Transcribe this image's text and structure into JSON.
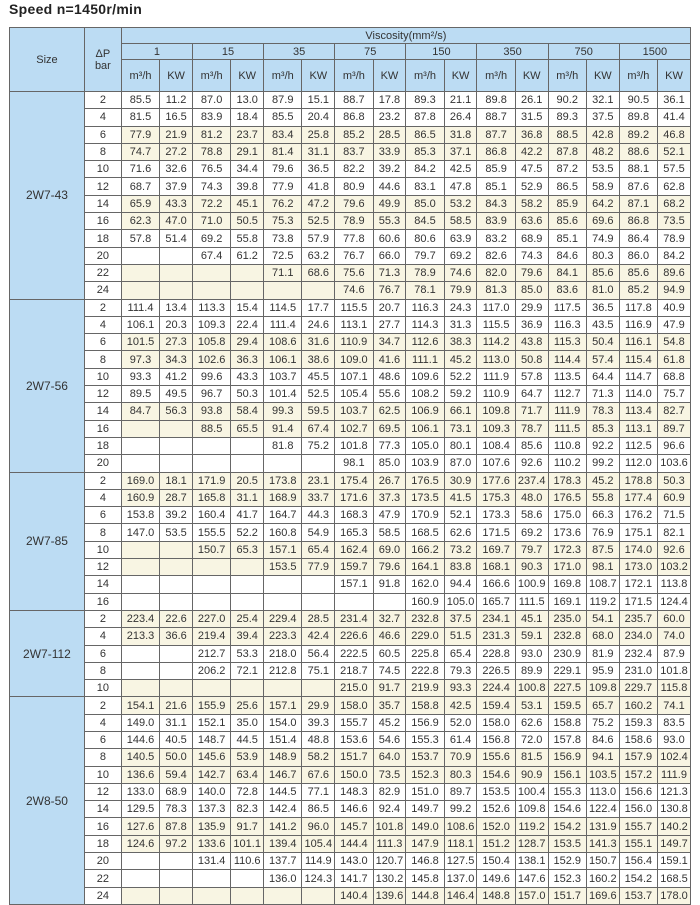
{
  "title": "Speed  n=1450r/min",
  "header": {
    "size": "Size",
    "dp": "ΔP",
    "dp_unit": "bar",
    "viscosity": "Viscosity(mm²/s)",
    "viscosities": [
      "1",
      "15",
      "35",
      "75",
      "150",
      "350",
      "750",
      "1500"
    ],
    "flow": "m³/h",
    "power": "KW"
  },
  "colors": {
    "header_bg": "#bcdcf3",
    "highlight_row": "#f8f5e3"
  },
  "groups": [
    {
      "size": "2W7-43",
      "rows": [
        {
          "dp": "2",
          "v": [
            "85.5",
            "11.2",
            "87.0",
            "13.0",
            "87.9",
            "15.1",
            "88.7",
            "17.8",
            "89.3",
            "21.1",
            "89.8",
            "26.1",
            "90.2",
            "32.1",
            "90.5",
            "36.1"
          ]
        },
        {
          "dp": "4",
          "v": [
            "81.5",
            "16.5",
            "83.9",
            "18.4",
            "85.5",
            "20.4",
            "86.8",
            "23.2",
            "87.8",
            "26.4",
            "88.7",
            "31.5",
            "89.3",
            "37.5",
            "89.8",
            "41.4"
          ]
        },
        {
          "dp": "6",
          "hl": true,
          "v": [
            "77.9",
            "21.9",
            "81.2",
            "23.7",
            "83.4",
            "25.8",
            "85.2",
            "28.5",
            "86.5",
            "31.8",
            "87.7",
            "36.8",
            "88.5",
            "42.8",
            "89.2",
            "46.8"
          ]
        },
        {
          "dp": "8",
          "hl": true,
          "v": [
            "74.7",
            "27.2",
            "78.8",
            "29.1",
            "81.4",
            "31.1",
            "83.7",
            "33.9",
            "85.3",
            "37.1",
            "86.8",
            "42.2",
            "87.8",
            "48.2",
            "88.6",
            "52.1"
          ]
        },
        {
          "dp": "10",
          "v": [
            "71.6",
            "32.6",
            "76.5",
            "34.4",
            "79.6",
            "36.5",
            "82.2",
            "39.2",
            "84.2",
            "42.5",
            "85.9",
            "47.5",
            "87.2",
            "53.5",
            "88.1",
            "57.5"
          ]
        },
        {
          "dp": "12",
          "v": [
            "68.7",
            "37.9",
            "74.3",
            "39.8",
            "77.9",
            "41.8",
            "80.9",
            "44.6",
            "83.1",
            "47.8",
            "85.1",
            "52.9",
            "86.5",
            "58.9",
            "87.6",
            "62.8"
          ]
        },
        {
          "dp": "14",
          "hl": true,
          "v": [
            "65.9",
            "43.3",
            "72.2",
            "45.1",
            "76.2",
            "47.2",
            "79.6",
            "49.9",
            "85.0",
            "53.2",
            "84.3",
            "58.2",
            "85.9",
            "64.2",
            "87.1",
            "68.2"
          ]
        },
        {
          "dp": "16",
          "hl": true,
          "v": [
            "62.3",
            "47.0",
            "71.0",
            "50.5",
            "75.3",
            "52.5",
            "78.9",
            "55.3",
            "84.5",
            "58.5",
            "83.9",
            "63.6",
            "85.6",
            "69.6",
            "86.8",
            "73.5"
          ]
        },
        {
          "dp": "18",
          "v": [
            "57.8",
            "51.4",
            "69.2",
            "55.8",
            "73.8",
            "57.9",
            "77.8",
            "60.6",
            "80.6",
            "63.9",
            "83.2",
            "68.9",
            "85.1",
            "74.9",
            "86.4",
            "78.9"
          ]
        },
        {
          "dp": "20",
          "v": [
            "",
            "",
            "67.4",
            "61.2",
            "72.5",
            "63.2",
            "76.7",
            "66.0",
            "79.7",
            "69.2",
            "82.6",
            "74.3",
            "84.6",
            "80.3",
            "86.0",
            "84.2"
          ]
        },
        {
          "dp": "22",
          "hl": true,
          "v": [
            "",
            "",
            "",
            "",
            "71.1",
            "68.6",
            "75.6",
            "71.3",
            "78.9",
            "74.6",
            "82.0",
            "79.6",
            "84.1",
            "85.6",
            "85.6",
            "89.6"
          ]
        },
        {
          "dp": "24",
          "hl": true,
          "v": [
            "",
            "",
            "",
            "",
            "",
            "",
            "74.6",
            "76.7",
            "78.1",
            "79.9",
            "81.3",
            "85.0",
            "83.6",
            "81.0",
            "85.2",
            "94.9"
          ]
        }
      ]
    },
    {
      "size": "2W7-56",
      "rows": [
        {
          "dp": "2",
          "v": [
            "111.4",
            "13.4",
            "113.3",
            "15.4",
            "114.5",
            "17.7",
            "115.5",
            "20.7",
            "116.3",
            "24.3",
            "117.0",
            "29.9",
            "117.5",
            "36.5",
            "117.8",
            "40.9"
          ]
        },
        {
          "dp": "4",
          "v": [
            "106.1",
            "20.3",
            "109.3",
            "22.4",
            "111.4",
            "24.6",
            "113.1",
            "27.7",
            "114.3",
            "31.3",
            "115.5",
            "36.9",
            "116.3",
            "43.5",
            "116.9",
            "47.9"
          ]
        },
        {
          "dp": "6",
          "hl": true,
          "v": [
            "101.5",
            "27.3",
            "105.8",
            "29.4",
            "108.6",
            "31.6",
            "110.9",
            "34.7",
            "112.6",
            "38.3",
            "114.2",
            "43.8",
            "115.3",
            "50.4",
            "116.1",
            "54.8"
          ]
        },
        {
          "dp": "8",
          "hl": true,
          "v": [
            "97.3",
            "34.3",
            "102.6",
            "36.3",
            "106.1",
            "38.6",
            "109.0",
            "41.6",
            "111.1",
            "45.2",
            "113.0",
            "50.8",
            "114.4",
            "57.4",
            "115.4",
            "61.8"
          ]
        },
        {
          "dp": "10",
          "v": [
            "93.3",
            "41.2",
            "99.6",
            "43.3",
            "103.7",
            "45.5",
            "107.1",
            "48.6",
            "109.6",
            "52.2",
            "111.9",
            "57.8",
            "113.5",
            "64.4",
            "114.7",
            "68.8"
          ]
        },
        {
          "dp": "12",
          "v": [
            "89.5",
            "49.5",
            "96.7",
            "50.3",
            "101.4",
            "52.5",
            "105.4",
            "55.6",
            "108.2",
            "59.2",
            "110.9",
            "64.7",
            "112.7",
            "71.3",
            "114.0",
            "75.7"
          ]
        },
        {
          "dp": "14",
          "hl": true,
          "v": [
            "84.7",
            "56.3",
            "93.8",
            "58.4",
            "99.3",
            "59.5",
            "103.7",
            "62.5",
            "106.9",
            "66.1",
            "109.8",
            "71.7",
            "111.9",
            "78.3",
            "113.4",
            "82.7"
          ]
        },
        {
          "dp": "16",
          "hl": true,
          "v": [
            "",
            "",
            "88.5",
            "65.5",
            "91.4",
            "67.4",
            "102.7",
            "69.5",
            "106.1",
            "73.1",
            "109.3",
            "78.7",
            "111.5",
            "85.3",
            "113.1",
            "89.7"
          ]
        },
        {
          "dp": "18",
          "v": [
            "",
            "",
            "",
            "",
            "81.8",
            "75.2",
            "101.8",
            "77.3",
            "105.0",
            "80.1",
            "108.4",
            "85.6",
            "110.8",
            "92.2",
            "112.5",
            "96.6"
          ]
        },
        {
          "dp": "20",
          "v": [
            "",
            "",
            "",
            "",
            "",
            "",
            "98.1",
            "85.0",
            "103.9",
            "87.0",
            "107.6",
            "92.6",
            "110.2",
            "99.2",
            "112.0",
            "103.6"
          ]
        }
      ]
    },
    {
      "size": "2W7-85",
      "rows": [
        {
          "dp": "2",
          "hl": true,
          "v": [
            "169.0",
            "18.1",
            "171.9",
            "20.5",
            "173.8",
            "23.1",
            "175.4",
            "26.7",
            "176.5",
            "30.9",
            "177.6",
            "237.4",
            "178.3",
            "45.2",
            "178.8",
            "50.3"
          ]
        },
        {
          "dp": "4",
          "hl": true,
          "v": [
            "160.9",
            "28.7",
            "165.8",
            "31.1",
            "168.9",
            "33.7",
            "171.6",
            "37.3",
            "173.5",
            "41.5",
            "175.3",
            "48.0",
            "176.5",
            "55.8",
            "177.4",
            "60.9"
          ]
        },
        {
          "dp": "6",
          "v": [
            "153.8",
            "39.2",
            "160.4",
            "41.7",
            "164.7",
            "44.3",
            "168.3",
            "47.9",
            "170.9",
            "52.1",
            "173.3",
            "58.6",
            "175.0",
            "66.3",
            "176.2",
            "71.5"
          ]
        },
        {
          "dp": "8",
          "v": [
            "147.0",
            "53.5",
            "155.5",
            "52.2",
            "160.8",
            "54.9",
            "165.3",
            "58.5",
            "168.5",
            "62.6",
            "171.5",
            "69.2",
            "173.6",
            "76.9",
            "175.1",
            "82.1"
          ]
        },
        {
          "dp": "10",
          "hl": true,
          "v": [
            "",
            "",
            "150.7",
            "65.3",
            "157.1",
            "65.4",
            "162.4",
            "69.0",
            "166.2",
            "73.2",
            "169.7",
            "79.7",
            "172.3",
            "87.5",
            "174.0",
            "92.6"
          ]
        },
        {
          "dp": "12",
          "hl": true,
          "v": [
            "",
            "",
            "",
            "",
            "153.5",
            "77.9",
            "159.7",
            "79.6",
            "164.1",
            "83.8",
            "168.1",
            "90.3",
            "171.0",
            "98.1",
            "173.0",
            "103.2"
          ]
        },
        {
          "dp": "14",
          "v": [
            "",
            "",
            "",
            "",
            "",
            "",
            "157.1",
            "91.8",
            "162.0",
            "94.4",
            "166.6",
            "100.9",
            "169.8",
            "108.7",
            "172.1",
            "113.8"
          ]
        },
        {
          "dp": "16",
          "v": [
            "",
            "",
            "",
            "",
            "",
            "",
            "",
            "",
            "160.9",
            "105.0",
            "165.7",
            "111.5",
            "169.1",
            "119.2",
            "171.5",
            "124.4"
          ]
        }
      ]
    },
    {
      "size": "2W7-112",
      "rows": [
        {
          "dp": "2",
          "hl": true,
          "v": [
            "223.4",
            "22.6",
            "227.0",
            "25.4",
            "229.4",
            "28.5",
            "231.4",
            "32.7",
            "232.8",
            "37.5",
            "234.1",
            "45.1",
            "235.0",
            "54.1",
            "235.7",
            "60.0"
          ]
        },
        {
          "dp": "4",
          "hl": true,
          "v": [
            "213.3",
            "36.6",
            "219.4",
            "39.4",
            "223.3",
            "42.4",
            "226.6",
            "46.6",
            "229.0",
            "51.5",
            "231.3",
            "59.1",
            "232.8",
            "68.0",
            "234.0",
            "74.0"
          ]
        },
        {
          "dp": "6",
          "v": [
            "",
            "",
            "212.7",
            "53.3",
            "218.0",
            "56.4",
            "222.5",
            "60.5",
            "225.8",
            "65.4",
            "228.8",
            "93.0",
            "230.9",
            "81.9",
            "232.4",
            "87.9"
          ]
        },
        {
          "dp": "8",
          "v": [
            "",
            "",
            "206.2",
            "72.1",
            "212.8",
            "75.1",
            "218.7",
            "74.5",
            "222.8",
            "79.3",
            "226.5",
            "89.9",
            "229.1",
            "95.9",
            "231.0",
            "101.8"
          ]
        },
        {
          "dp": "10",
          "hl": true,
          "v": [
            "",
            "",
            "",
            "",
            "",
            "",
            "215.0",
            "91.7",
            "219.9",
            "93.3",
            "224.4",
            "100.8",
            "227.5",
            "109.8",
            "229.7",
            "115.8"
          ]
        }
      ]
    },
    {
      "size": "2W8-50",
      "rows": [
        {
          "dp": "2",
          "hl": true,
          "v": [
            "154.1",
            "21.6",
            "155.9",
            "25.6",
            "157.1",
            "29.9",
            "158.0",
            "35.7",
            "158.8",
            "42.5",
            "159.4",
            "53.1",
            "159.5",
            "65.7",
            "160.2",
            "74.1"
          ]
        },
        {
          "dp": "4",
          "v": [
            "149.0",
            "31.1",
            "152.1",
            "35.0",
            "154.0",
            "39.3",
            "155.7",
            "45.2",
            "156.9",
            "52.0",
            "158.0",
            "62.6",
            "158.8",
            "75.2",
            "159.3",
            "83.5"
          ]
        },
        {
          "dp": "6",
          "v": [
            "144.6",
            "40.5",
            "148.7",
            "44.5",
            "151.4",
            "48.8",
            "153.6",
            "54.6",
            "155.3",
            "61.4",
            "156.8",
            "72.0",
            "157.8",
            "84.6",
            "158.6",
            "93.0"
          ]
        },
        {
          "dp": "8",
          "hl": true,
          "v": [
            "140.5",
            "50.0",
            "145.6",
            "53.9",
            "148.9",
            "58.2",
            "151.7",
            "64.0",
            "153.7",
            "70.9",
            "155.6",
            "81.5",
            "156.9",
            "94.1",
            "157.9",
            "102.4"
          ]
        },
        {
          "dp": "10",
          "hl": true,
          "v": [
            "136.6",
            "59.4",
            "142.7",
            "63.4",
            "146.7",
            "67.6",
            "150.0",
            "73.5",
            "152.3",
            "80.3",
            "154.6",
            "90.9",
            "156.1",
            "103.5",
            "157.2",
            "111.9"
          ]
        },
        {
          "dp": "12",
          "v": [
            "133.0",
            "68.9",
            "140.0",
            "72.8",
            "144.5",
            "77.1",
            "148.3",
            "82.9",
            "151.0",
            "89.7",
            "153.5",
            "100.4",
            "155.3",
            "113.0",
            "156.6",
            "121.3"
          ]
        },
        {
          "dp": "14",
          "v": [
            "129.5",
            "78.3",
            "137.3",
            "82.3",
            "142.4",
            "86.5",
            "146.6",
            "92.4",
            "149.7",
            "99.2",
            "152.6",
            "109.8",
            "154.6",
            "122.4",
            "156.0",
            "130.8"
          ]
        },
        {
          "dp": "16",
          "hl": true,
          "v": [
            "127.6",
            "87.8",
            "135.9",
            "91.7",
            "141.2",
            "96.0",
            "145.7",
            "101.8",
            "149.0",
            "108.6",
            "152.0",
            "119.2",
            "154.2",
            "131.9",
            "155.7",
            "140.2"
          ]
        },
        {
          "dp": "18",
          "hl": true,
          "v": [
            "124.6",
            "97.2",
            "133.6",
            "101.1",
            "139.4",
            "105.4",
            "144.4",
            "111.3",
            "147.9",
            "118.1",
            "151.2",
            "128.7",
            "153.5",
            "141.3",
            "155.1",
            "149.7"
          ]
        },
        {
          "dp": "20",
          "v": [
            "",
            "",
            "131.4",
            "110.6",
            "137.7",
            "114.9",
            "143.0",
            "120.7",
            "146.8",
            "127.5",
            "150.4",
            "138.1",
            "152.9",
            "150.7",
            "156.4",
            "159.1"
          ]
        },
        {
          "dp": "22",
          "v": [
            "",
            "",
            "",
            "",
            "136.0",
            "124.3",
            "141.7",
            "130.2",
            "145.8",
            "137.0",
            "149.6",
            "147.6",
            "152.3",
            "160.2",
            "154.2",
            "168.5"
          ]
        },
        {
          "dp": "24",
          "hl": true,
          "v": [
            "",
            "",
            "",
            "",
            "",
            "",
            "140.4",
            "139.6",
            "144.8",
            "146.4",
            "148.8",
            "157.0",
            "151.7",
            "169.6",
            "153.7",
            "178.0"
          ]
        }
      ]
    }
  ]
}
